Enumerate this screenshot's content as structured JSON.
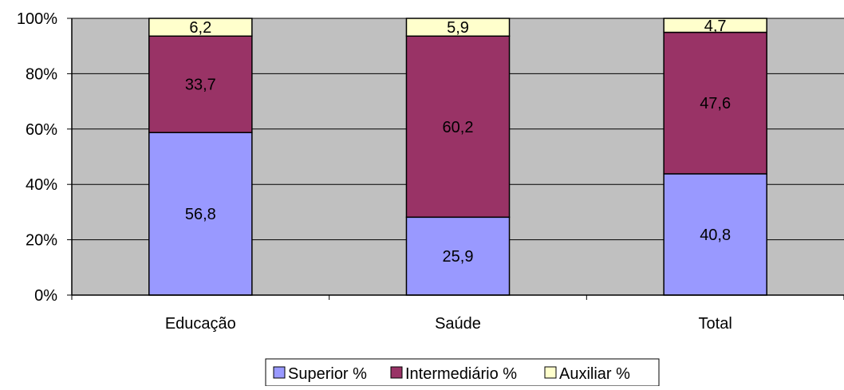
{
  "chart_data": {
    "type": "bar",
    "stacked": true,
    "normalized": true,
    "categories": [
      "Educação",
      "Saúde",
      "Total"
    ],
    "series": [
      {
        "name": "Superior %",
        "values": [
          56.8,
          25.9,
          40.8
        ],
        "color": "#9999FF"
      },
      {
        "name": "Intermediário %",
        "values": [
          33.7,
          60.2,
          47.6
        ],
        "color": "#993366"
      },
      {
        "name": "Auxiliar %",
        "values": [
          6.2,
          5.9,
          4.7
        ],
        "color": "#FFFFCC"
      }
    ],
    "data_labels": [
      [
        "56,8",
        "25,9",
        "40,8"
      ],
      [
        "33,7",
        "60,2",
        "47,6"
      ],
      [
        "6,2",
        "5,9",
        "4,7"
      ]
    ],
    "y_ticks": [
      "0%",
      "20%",
      "40%",
      "60%",
      "80%",
      "100%"
    ],
    "ylim": [
      0,
      100
    ],
    "title": "",
    "xlabel": "",
    "ylabel": "",
    "grid": true,
    "legend_position": "bottom",
    "plot_background": "#C0C0C0"
  }
}
